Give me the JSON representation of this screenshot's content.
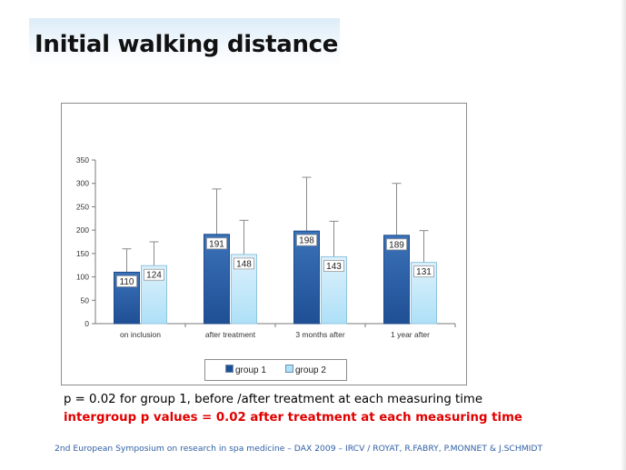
{
  "slide": {
    "title": "Initial walking distance",
    "note_line_1": "p = 0.02 for group 1, before /after treatment at each measuring time",
    "note_line_2": "intergroup p values = 0.02 after treatment at each measuring time",
    "note_line_2_color": "#e00000",
    "footer": "2nd European Symposium  on research in spa medicine – DAX 2009 – IRCV / ROYAT, R.FABRY, P.MONNET & J.SCHMIDT",
    "footer_color": "#2f5fa4"
  },
  "chart_data": {
    "type": "bar",
    "title": "",
    "xlabel": "",
    "ylabel": "",
    "categories": [
      "on inclusion",
      "after treatment",
      "3 months after",
      "1 year after"
    ],
    "ylim": [
      0,
      350
    ],
    "yticks": [
      "0",
      "50",
      "100",
      "150",
      "200",
      "250",
      "300",
      "350"
    ],
    "grid": false,
    "legend_position": "bottom",
    "series": [
      {
        "name": "group 1",
        "values": [
          110,
          191,
          198,
          189
        ],
        "error_upper": [
          160,
          288,
          313,
          300
        ],
        "color_top": "#3b72b8",
        "color_bottom": "#1f4f95"
      },
      {
        "name": "group 2",
        "values": [
          124,
          148,
          143,
          131
        ],
        "error_upper": [
          175,
          221,
          219,
          199
        ],
        "color_top": "#ddf1fc",
        "color_bottom": "#aee0f7"
      }
    ],
    "data_labels": [
      [
        "110",
        "191",
        "198",
        "189"
      ],
      [
        "124",
        "148",
        "143",
        "131"
      ]
    ]
  }
}
